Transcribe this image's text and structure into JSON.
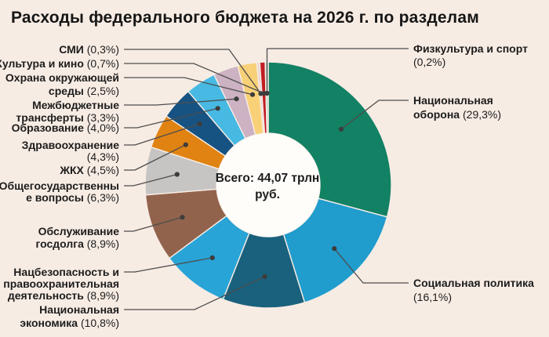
{
  "title": "Расходы федерального бюджета на 2026 г. по разделам",
  "center": {
    "line1": "Всего: 44,07 трлн",
    "line2": "руб."
  },
  "colors": {
    "background": "#f7ece4",
    "hole": "#fffdfa",
    "leader_line": "#4d4d4d",
    "dot": "#3c3c3c",
    "label_text": "#1c1c1c",
    "title_text": "#161616"
  },
  "chart_data": {
    "type": "pie",
    "subtype": "donut",
    "title": "Расходы федерального бюджета на 2026 г. по разделам",
    "center_label": "Всего: 44,07 трлн руб.",
    "total_trln_rub": 44.07,
    "unit": "percent",
    "start_angle": "12 o'clock, clockwise",
    "slices": [
      {
        "label": "Национальная оборона",
        "pct": 29.3,
        "pct_label": "(29,3%)",
        "color": "#128164",
        "side": "right",
        "name_lines": [
          "Национальная",
          "оборона"
        ]
      },
      {
        "label": "Социальная политика",
        "pct": 16.1,
        "pct_label": "(16,1%)",
        "color": "#209ccd",
        "side": "right",
        "name_lines": [
          "Социальная политика",
          ""
        ]
      },
      {
        "label": "Национальная экономика",
        "pct": 10.8,
        "pct_label": "(10,8%)",
        "color": "#19617d",
        "side": "left",
        "name_lines": [
          "Национальная",
          "экономика"
        ]
      },
      {
        "label": "Нацбезопасность и правоохранительная деятельность",
        "pct": 8.9,
        "pct_label": "(8,9%)",
        "color": "#29a4d7",
        "side": "left",
        "name_lines": [
          "Нацбезопасность и",
          "правоохранительная",
          "деятельность"
        ]
      },
      {
        "label": "Обслуживание госдолга",
        "pct": 8.9,
        "pct_label": "(8,9%)",
        "color": "#92634c",
        "side": "left",
        "name_lines": [
          "Обслуживание",
          "госдолга"
        ]
      },
      {
        "label": "Общегосударственные вопросы",
        "pct": 6.3,
        "pct_label": "(6,3%)",
        "color": "#c6c5c3",
        "side": "left",
        "name_lines": [
          "Общегосударственны",
          "е вопросы"
        ]
      },
      {
        "label": "ЖКХ",
        "pct": 4.5,
        "pct_label": "(4,5%)",
        "color": "#e08312",
        "side": "left",
        "name_lines": [
          "ЖКХ"
        ]
      },
      {
        "label": "Здравоохранение",
        "pct": 4.3,
        "pct_label": "(4,3%)",
        "color": "#175382",
        "side": "left",
        "name_lines": [
          "Здравоохранение",
          ""
        ]
      },
      {
        "label": "Образование",
        "pct": 4.0,
        "pct_label": "(4,0%)",
        "color": "#47b9e3",
        "side": "left",
        "name_lines": [
          "Образование"
        ]
      },
      {
        "label": "Межбюджетные трансферты",
        "pct": 3.3,
        "pct_label": "(3,3%)",
        "color": "#ccb2c3",
        "side": "left",
        "name_lines": [
          "Межбюджетные",
          "трансферты"
        ]
      },
      {
        "label": "Охрана окружающей среды",
        "pct": 2.5,
        "pct_label": "(2,5%)",
        "color": "#f8d077",
        "side": "left",
        "name_lines": [
          "Охрана окружающей",
          "среды"
        ]
      },
      {
        "label": "СМИ",
        "pct": 0.3,
        "pct_label": "(0,3%)",
        "color": "#ead6d2",
        "side": "left",
        "name_lines": [
          "СМИ"
        ]
      },
      {
        "label": "Культура и кино",
        "pct": 0.7,
        "pct_label": "(0,7%)",
        "color": "#c01d23",
        "side": "left",
        "name_lines": [
          "Культура и кино"
        ]
      },
      {
        "label": "Физкультура и спорт",
        "pct": 0.2,
        "pct_label": "(0,2%)",
        "color": "#bcdcc8",
        "side": "right",
        "name_lines": [
          "Физкультура и спорт",
          ""
        ]
      }
    ]
  }
}
